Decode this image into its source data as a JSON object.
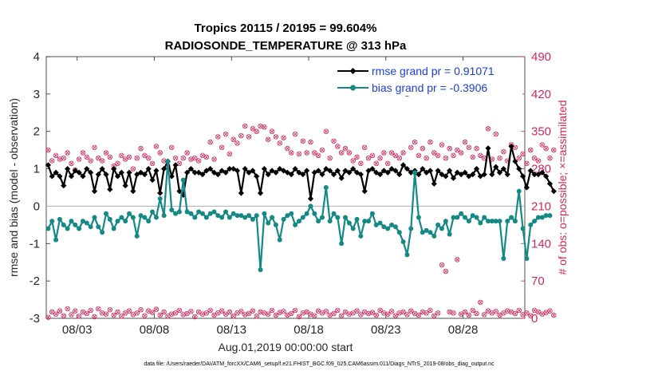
{
  "chart_data": {
    "type": "line",
    "title_line1": "Tropics 20115 / 20195 = 99.604%",
    "title_line2": "RADIOSONDE_TEMPERATURE @ 313 hPa",
    "xlabel": "Aug.01,2019 00:00:00 start",
    "ylabel_left": "rmse and bias (model - observation)",
    "ylabel_right": "# of obs: o=possible; ×=assimilated",
    "ylim_left": [
      -3,
      4
    ],
    "ylim_right": [
      0,
      490
    ],
    "xlim_days": [
      0,
      31
    ],
    "x_ticks": [
      {
        "day": 2,
        "label": "08/03"
      },
      {
        "day": 7,
        "label": "08/08"
      },
      {
        "day": 12,
        "label": "08/13"
      },
      {
        "day": 17,
        "label": "08/18"
      },
      {
        "day": 22,
        "label": "08/23"
      },
      {
        "day": 27,
        "label": "08/28"
      }
    ],
    "y_ticks_left": [
      -3,
      -2,
      -1,
      0,
      1,
      2,
      3,
      4
    ],
    "y_ticks_right": [
      0,
      70,
      140,
      210,
      280,
      350,
      420,
      490
    ],
    "x_step_days": 0.25,
    "series": [
      {
        "name": "rmse grand pr = 0.91071",
        "color": "#000000",
        "marker": "diamond",
        "values": [
          1.1,
          0.8,
          0.9,
          0.8,
          0.55,
          1.0,
          0.8,
          0.95,
          0.9,
          0.8,
          1.0,
          0.9,
          0.4,
          0.85,
          1.0,
          0.85,
          0.45,
          1.0,
          0.8,
          0.9,
          0.55,
          0.9,
          0.4,
          0.85,
          0.9,
          0.85,
          1.0,
          0.7,
          0.95,
          0.35,
          1.0,
          1.2,
          0.8,
          1.1,
          0.4,
          0.3,
          0.9,
          1.0,
          0.9,
          0.9,
          0.85,
          0.95,
          1.0,
          0.9,
          0.85,
          0.95,
          0.9,
          1.0,
          1.0,
          0.95,
          0.35,
          1.0,
          0.9,
          0.95,
          0.8,
          0.35,
          1.0,
          0.85,
          0.95,
          0.9,
          1.0,
          0.95,
          0.9,
          0.85,
          1.0,
          0.9,
          0.85,
          0.95,
          0.2,
          0.9,
          0.95,
          0.85,
          1.0,
          0.95,
          0.85,
          0.95,
          0.75,
          0.95,
          0.9,
          1.0,
          0.9,
          0.85,
          0.4,
          0.95,
          1.0,
          0.9,
          0.85,
          0.95,
          0.9,
          1.0,
          0.95,
          0.85,
          1.1,
          1.0,
          0.9,
          0.95,
          0.85,
          1.0,
          0.9,
          0.95,
          0.6,
          0.95,
          0.85,
          0.8,
          0.95,
          0.75,
          0.9,
          0.85,
          0.9,
          0.8,
          0.85,
          1.0,
          0.8,
          0.85,
          1.55,
          0.85,
          1.05,
          0.9,
          1.0,
          0.85,
          1.6,
          1.2,
          1.0,
          0.8,
          0.5,
          0.95,
          0.85,
          0.85,
          0.9,
          0.8,
          0.6,
          0.4
        ]
      },
      {
        "name": "bias grand pr = -0.3906",
        "color": "#148a84",
        "marker": "circle",
        "values": [
          -0.6,
          -0.4,
          -0.9,
          -0.35,
          -0.5,
          -0.6,
          -0.4,
          -0.5,
          -0.6,
          -0.4,
          -0.45,
          -0.55,
          -0.3,
          -0.55,
          -0.7,
          -0.2,
          -0.35,
          -0.6,
          -0.4,
          -0.3,
          -0.4,
          -0.2,
          -0.3,
          -0.8,
          -0.25,
          -0.3,
          -0.4,
          -0.15,
          -0.3,
          0.2,
          -0.25,
          1.2,
          -0.1,
          -0.2,
          -0.15,
          0.7,
          -0.15,
          -0.2,
          -0.3,
          -0.15,
          -0.2,
          -0.3,
          -0.2,
          -0.15,
          -0.25,
          -0.3,
          -0.15,
          -0.3,
          -0.2,
          -0.25,
          -0.25,
          -0.3,
          -0.25,
          -0.35,
          -0.25,
          -1.7,
          -0.2,
          -0.45,
          -0.3,
          -0.5,
          -0.9,
          -0.35,
          -0.25,
          -0.2,
          -0.5,
          -0.4,
          -0.3,
          -0.2,
          0.0,
          -0.2,
          -0.4,
          -0.3,
          0.5,
          -0.4,
          -0.2,
          -0.3,
          -1.0,
          -0.3,
          -0.45,
          -0.6,
          -0.35,
          -0.8,
          -0.4,
          -0.4,
          -0.2,
          -0.5,
          -0.45,
          -0.55,
          -0.6,
          -0.5,
          -0.55,
          -0.7,
          -0.95,
          -1.3,
          -0.6,
          0.9,
          -0.3,
          -0.7,
          -0.65,
          -0.7,
          -0.8,
          -0.5,
          -0.6,
          -0.4,
          -0.75,
          -0.3,
          -0.3,
          -0.2,
          -0.3,
          -0.4,
          -0.25,
          -0.3,
          -0.45,
          -0.3,
          -0.4,
          -0.4,
          -0.4,
          -0.4,
          -1.4,
          -0.4,
          -0.3,
          -0.4,
          0.4,
          -0.6,
          -1.4,
          -0.5,
          -0.4,
          -0.3,
          -0.3,
          -0.25,
          -0.25
        ]
      }
    ],
    "obs_counts": {
      "color": "#d5275c",
      "possible_high": [
        315,
        295,
        305,
        298,
        300,
        310,
        290,
        278,
        298,
        310,
        302,
        295,
        320,
        300,
        295,
        310,
        302,
        285,
        290,
        305,
        298,
        302,
        280,
        300,
        318,
        305,
        300,
        290,
        322,
        310,
        295,
        285,
        320,
        300,
        290,
        300,
        310,
        298,
        300,
        295,
        305,
        302,
        330,
        298,
        340,
        320,
        345,
        308,
        335,
        328,
        342,
        360,
        340,
        355,
        350,
        360,
        358,
        335,
        350,
        340,
        328,
        338,
        318,
        310,
        345,
        308,
        332,
        310,
        330,
        310,
        305,
        315,
        350,
        300,
        332,
        322,
        310,
        318,
        310,
        295,
        302,
        290,
        320,
        300,
        305,
        290,
        300,
        310,
        290,
        310,
        305,
        300,
        310,
        420,
        320,
        330,
        305,
        318,
        300,
        330,
        310,
        305,
        325,
        300,
        318,
        305,
        315,
        310,
        330,
        320,
        302,
        318,
        305,
        300,
        355,
        298,
        345,
        300,
        312,
        295,
        325,
        320,
        300,
        308,
        290,
        315,
        300,
        295,
        325,
        318,
        300,
        315
      ],
      "possible_low": [
        2,
        12,
        8,
        14,
        5,
        18,
        7,
        14,
        4,
        12,
        9,
        15,
        3,
        18,
        10,
        8,
        16,
        6,
        12,
        4,
        10,
        14,
        7,
        10,
        16,
        5,
        14,
        11,
        17,
        6,
        12,
        4,
        8,
        10,
        15,
        7,
        9,
        13,
        3,
        12,
        8,
        10,
        15,
        6,
        10,
        14,
        8,
        12,
        4,
        10,
        13,
        7,
        9,
        14,
        4,
        12,
        10,
        8,
        15,
        6,
        11,
        13,
        6,
        9,
        15,
        3,
        10,
        12,
        8,
        5,
        14,
        10,
        13,
        6,
        9,
        15,
        5,
        12,
        8,
        10,
        14,
        7,
        12,
        9,
        11,
        6,
        15,
        10,
        8,
        13,
        5,
        10,
        12,
        7,
        14,
        9,
        6,
        12,
        10,
        15,
        5,
        10,
        100,
        88,
        12,
        10,
        110,
        8,
        12,
        6,
        15,
        9,
        30,
        7,
        14,
        10,
        13,
        6,
        10,
        14,
        12,
        9,
        15,
        7,
        10,
        5,
        15,
        12,
        8,
        11,
        14,
        6
      ]
    }
  },
  "footnote": "data file: /Users/raeder/DAI/ATM_forcXX/CAM6_setup/f.e21.FHIST_BGC.f09_025.CAM6assim.011/Diags_NTrS_2019-08/obs_diag_output.nc"
}
